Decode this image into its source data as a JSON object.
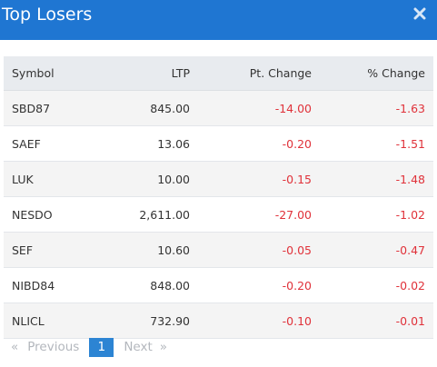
{
  "modal": {
    "title": "Top Losers",
    "close_icon": "close-icon"
  },
  "colors": {
    "header_bg": "#1f76d2",
    "negative": "#e0323a",
    "pagination_active": "#2c84d3"
  },
  "table": {
    "headers": {
      "symbol": "Symbol",
      "ltp": "LTP",
      "pt_change": "Pt. Change",
      "pct_change": "% Change"
    },
    "rows": [
      {
        "symbol": "SBD87",
        "ltp": "845.00",
        "pt_change": "-14.00",
        "pct_change": "-1.63"
      },
      {
        "symbol": "SAEF",
        "ltp": "13.06",
        "pt_change": "-0.20",
        "pct_change": "-1.51"
      },
      {
        "symbol": "LUK",
        "ltp": "10.00",
        "pt_change": "-0.15",
        "pct_change": "-1.48"
      },
      {
        "symbol": "NESDO",
        "ltp": "2,611.00",
        "pt_change": "-27.00",
        "pct_change": "-1.02"
      },
      {
        "symbol": "SEF",
        "ltp": "10.60",
        "pt_change": "-0.05",
        "pct_change": "-0.47"
      },
      {
        "symbol": "NIBD84",
        "ltp": "848.00",
        "pt_change": "-0.20",
        "pct_change": "-0.02"
      },
      {
        "symbol": "NLICL",
        "ltp": "732.90",
        "pt_change": "-0.10",
        "pct_change": "-0.01"
      }
    ]
  },
  "pagination": {
    "first_arrow": "«",
    "previous": "Previous",
    "current_page": "1",
    "next": "Next",
    "last_arrow": "»"
  }
}
